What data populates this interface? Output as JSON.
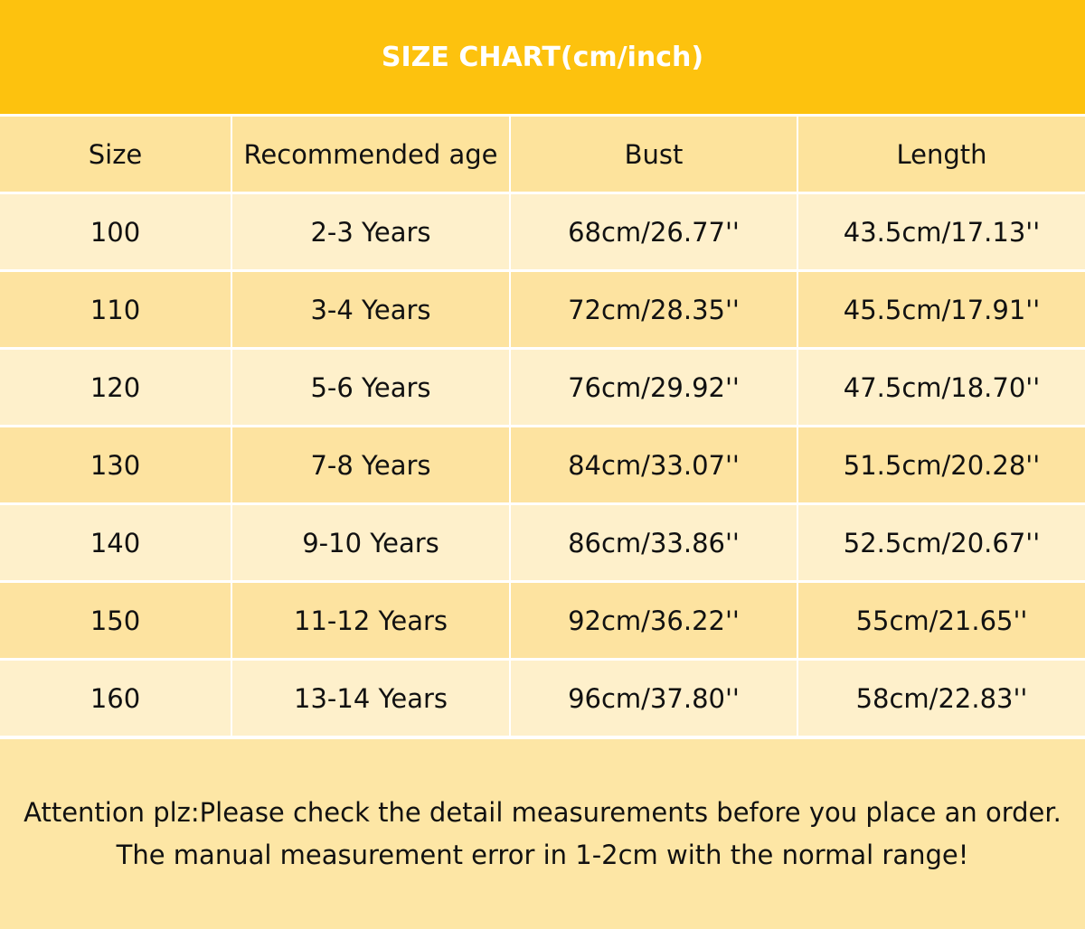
{
  "header": {
    "title": "SIZE CHART(cm/inch)"
  },
  "table": {
    "columns": [
      "Size",
      "Recommended age",
      "Bust",
      "Length"
    ],
    "rows": [
      [
        "100",
        "2-3 Years",
        "68cm/26.77''",
        "43.5cm/17.13''"
      ],
      [
        "110",
        "3-4 Years",
        "72cm/28.35''",
        "45.5cm/17.91''"
      ],
      [
        "120",
        "5-6 Years",
        "76cm/29.92''",
        "47.5cm/18.70''"
      ],
      [
        "130",
        "7-8 Years",
        "84cm/33.07''",
        "51.5cm/20.28''"
      ],
      [
        "140",
        "9-10 Years",
        "86cm/33.86''",
        "52.5cm/20.67''"
      ],
      [
        "150",
        "11-12 Years",
        "92cm/36.22''",
        "55cm/21.65''"
      ],
      [
        "160",
        "13-14 Years",
        "96cm/37.80''",
        "58cm/22.83''"
      ]
    ]
  },
  "notes": [
    "Attention plz:Please check the detail measurements before you place an order.",
    "The manual measurement error in 1-2cm with the normal range!"
  ]
}
